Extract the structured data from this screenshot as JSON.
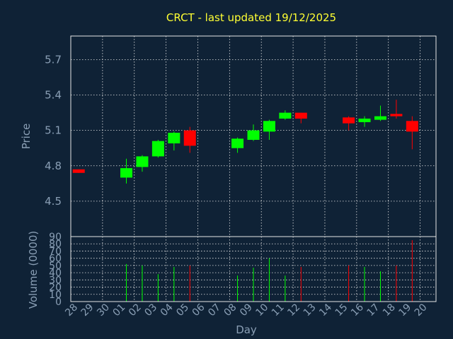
{
  "chart_data": {
    "type": "candlestick",
    "title": "CRCT - last updated 19/12/2025",
    "xlabel": "Day",
    "price_panel": {
      "ylabel": "Price",
      "yticks": [
        "4.5",
        "4.8",
        "5.1",
        "5.4",
        "5.7"
      ],
      "ylim": [
        4.2,
        5.9
      ],
      "grid": true
    },
    "volume_panel": {
      "ylabel": "Volume (0000)",
      "yticks": [
        "0",
        "10",
        "20",
        "30",
        "40",
        "50",
        "60",
        "70",
        "80",
        "90"
      ],
      "ylim": [
        0,
        90
      ],
      "grid": true
    },
    "x_labels": [
      "28",
      "29",
      "30",
      "01",
      "02",
      "03",
      "04",
      "05",
      "06",
      "07",
      "08",
      "09",
      "10",
      "11",
      "12",
      "13",
      "14",
      "15",
      "16",
      "17",
      "18",
      "19",
      "20"
    ],
    "up_color": "#00ff00",
    "down_color": "#ff0000",
    "candles": [
      {
        "day": "28",
        "open": 4.77,
        "high": 4.77,
        "low": 4.74,
        "close": 4.74,
        "volume": 0
      },
      {
        "day": "01",
        "open": 4.7,
        "high": 4.86,
        "low": 4.65,
        "close": 4.78,
        "volume": 52
      },
      {
        "day": "02",
        "open": 4.79,
        "high": 4.89,
        "low": 4.75,
        "close": 4.88,
        "volume": 50
      },
      {
        "day": "03",
        "open": 4.88,
        "high": 5.02,
        "low": 4.87,
        "close": 5.01,
        "volume": 38
      },
      {
        "day": "04",
        "open": 4.99,
        "high": 5.09,
        "low": 4.93,
        "close": 5.08,
        "volume": 48
      },
      {
        "day": "05",
        "open": 5.1,
        "high": 5.13,
        "low": 4.91,
        "close": 4.97,
        "volume": 50
      },
      {
        "day": "08",
        "open": 4.95,
        "high": 5.04,
        "low": 4.91,
        "close": 5.03,
        "volume": 36
      },
      {
        "day": "09",
        "open": 5.02,
        "high": 5.15,
        "low": 5.01,
        "close": 5.1,
        "volume": 47
      },
      {
        "day": "10",
        "open": 5.09,
        "high": 5.19,
        "low": 5.02,
        "close": 5.18,
        "volume": 60
      },
      {
        "day": "11",
        "open": 5.2,
        "high": 5.27,
        "low": 5.19,
        "close": 5.25,
        "volume": 36
      },
      {
        "day": "12",
        "open": 5.25,
        "high": 5.25,
        "low": 5.16,
        "close": 5.2,
        "volume": 48
      },
      {
        "day": "15",
        "open": 5.21,
        "high": 5.22,
        "low": 5.1,
        "close": 5.16,
        "volume": 50
      },
      {
        "day": "16",
        "open": 5.17,
        "high": 5.22,
        "low": 5.13,
        "close": 5.2,
        "volume": 48
      },
      {
        "day": "17",
        "open": 5.19,
        "high": 5.31,
        "low": 5.18,
        "close": 5.22,
        "volume": 42
      },
      {
        "day": "18",
        "open": 5.24,
        "high": 5.36,
        "low": 5.2,
        "close": 5.22,
        "volume": 50
      },
      {
        "day": "19",
        "open": 5.18,
        "high": 5.22,
        "low": 4.94,
        "close": 5.09,
        "volume": 85
      }
    ]
  }
}
